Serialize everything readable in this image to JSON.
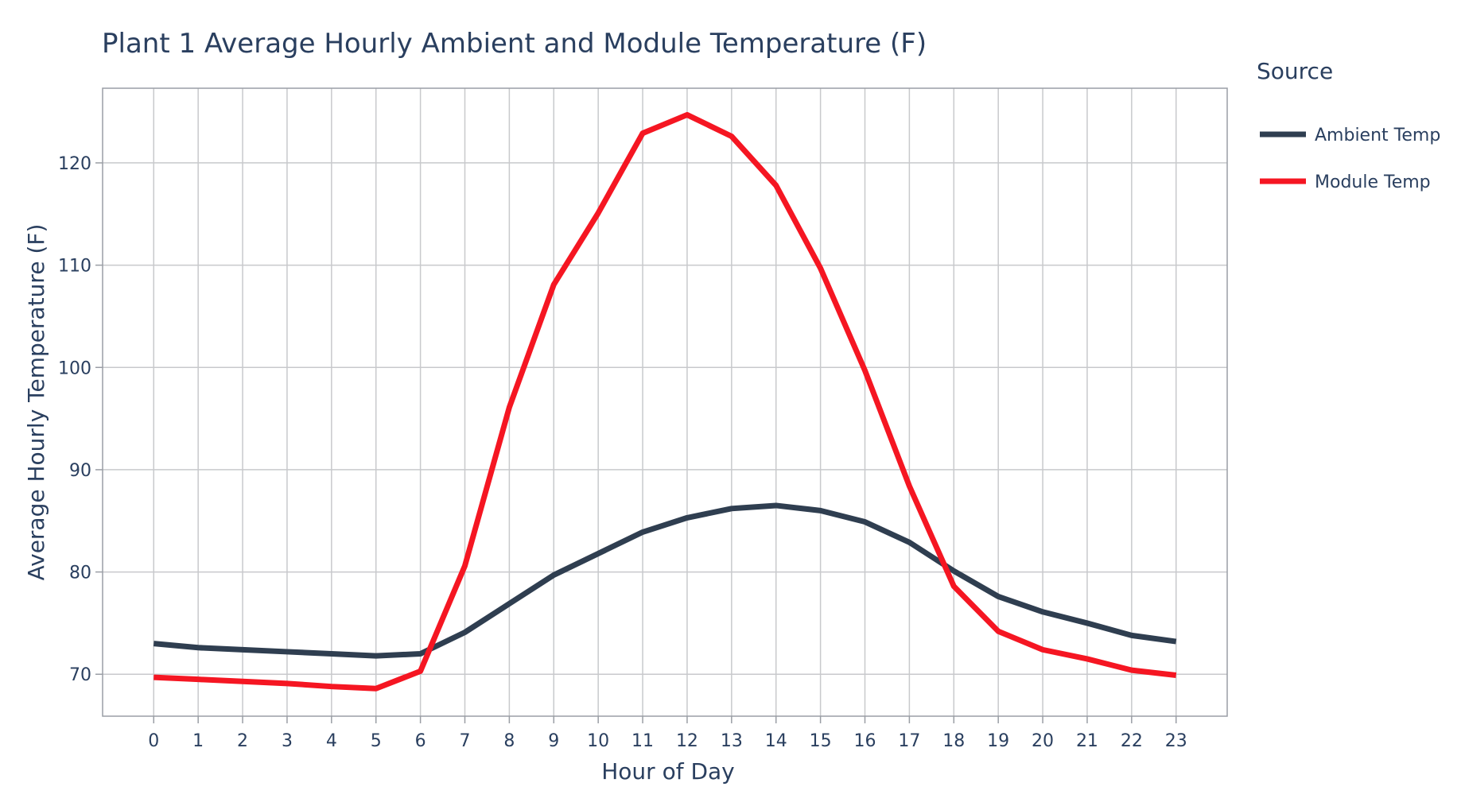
{
  "chart_data": {
    "type": "line",
    "title": "Plant 1 Average Hourly Ambient and Module Temperature (F)",
    "xlabel": "Hour of Day",
    "ylabel": "Average Hourly Temperature (F)",
    "x": [
      0,
      1,
      2,
      3,
      4,
      5,
      6,
      7,
      8,
      9,
      10,
      11,
      12,
      13,
      14,
      15,
      16,
      17,
      18,
      19,
      20,
      21,
      22,
      23
    ],
    "xlim": [
      -1.15,
      24.15
    ],
    "ylim": [
      65.9,
      127.3
    ],
    "y_ticks": [
      70,
      80,
      90,
      100,
      110,
      120
    ],
    "grid": true,
    "legend": {
      "title": "Source",
      "position": "right"
    },
    "series": [
      {
        "name": "Ambient Temp",
        "color": "#2f3e50",
        "values": [
          73.0,
          72.6,
          72.4,
          72.2,
          72.0,
          71.8,
          72.0,
          74.1,
          76.9,
          79.7,
          81.8,
          83.9,
          85.3,
          86.2,
          86.5,
          86.0,
          84.9,
          82.9,
          80.1,
          77.6,
          76.1,
          75.0,
          73.8,
          73.2
        ]
      },
      {
        "name": "Module Temp",
        "color": "#f51622",
        "values": [
          69.7,
          69.5,
          69.3,
          69.1,
          68.8,
          68.6,
          70.3,
          80.6,
          96.1,
          108.1,
          115.1,
          122.9,
          124.7,
          122.6,
          117.8,
          109.7,
          99.7,
          88.4,
          78.6,
          74.2,
          72.4,
          71.5,
          70.4,
          69.9
        ]
      }
    ]
  }
}
